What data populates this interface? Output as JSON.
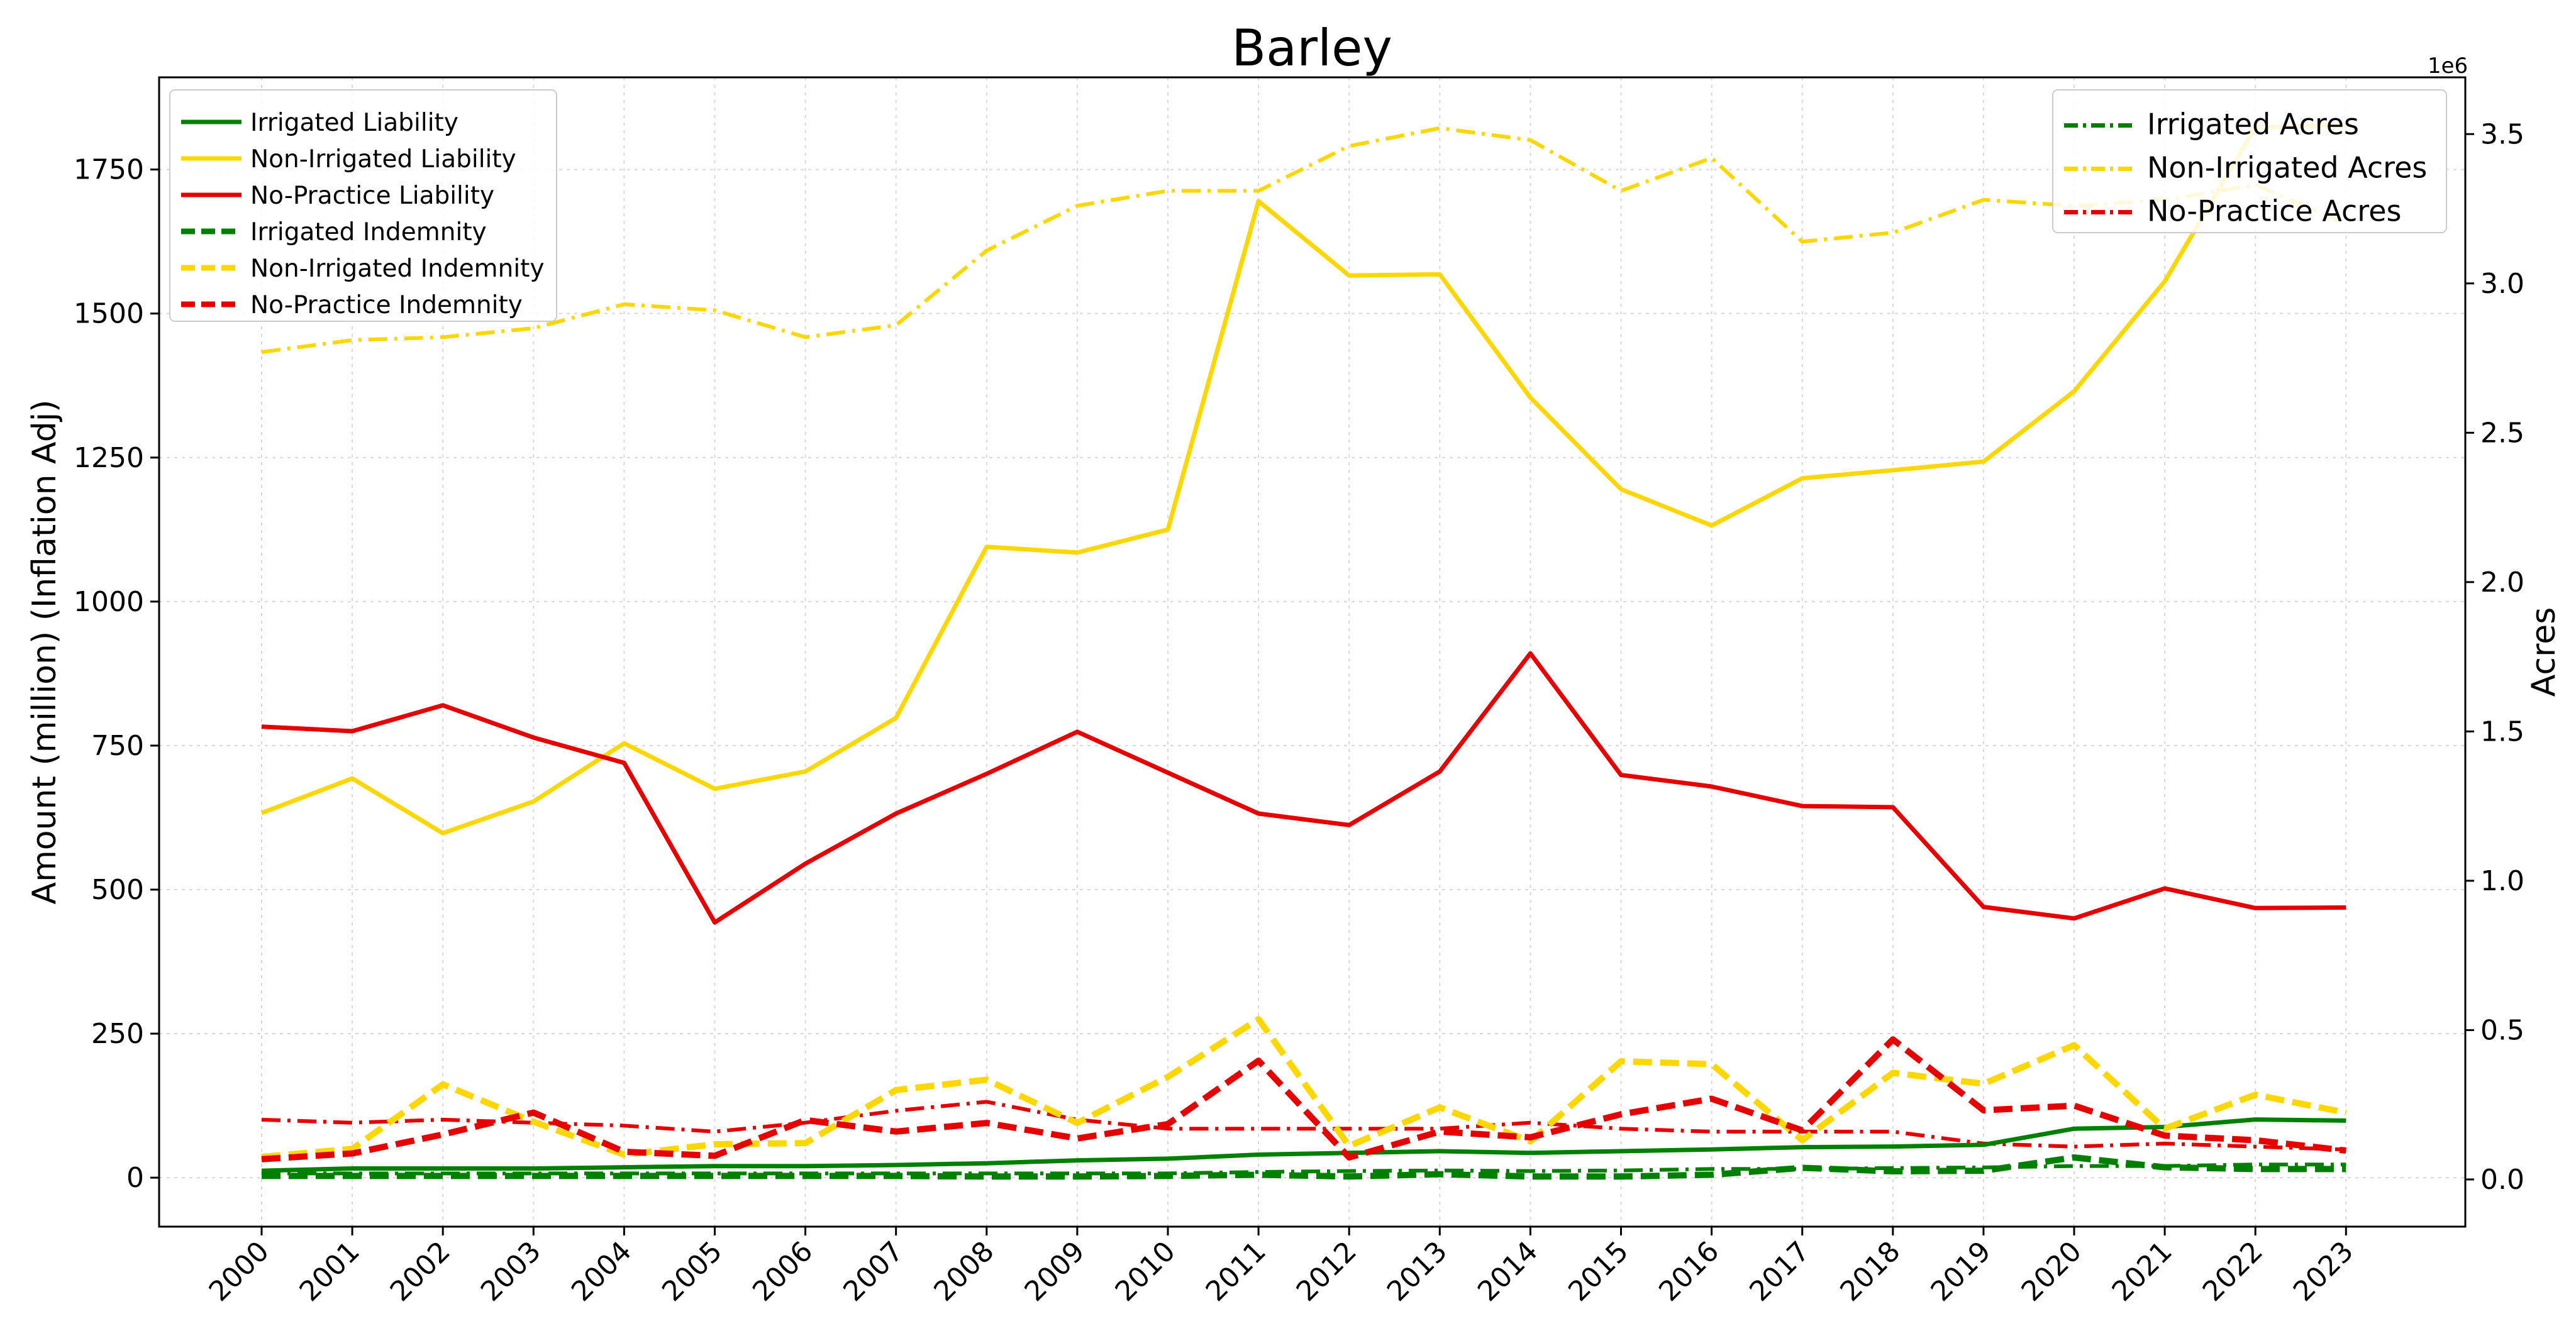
{
  "chart_data": {
    "type": "line",
    "title": "Barley",
    "ylabel": "Amount (million) (Inflation Adj)",
    "ylabel_right": "Acres",
    "right_axis_multiplier": "1e6",
    "grid": true,
    "legend_left_placement": "top-left",
    "legend_right_placement": "top-right",
    "x": [
      "2000",
      "2001",
      "2002",
      "2003",
      "2004",
      "2005",
      "2006",
      "2007",
      "2008",
      "2009",
      "2010",
      "2011",
      "2012",
      "2013",
      "2014",
      "2015",
      "2016",
      "2017",
      "2018",
      "2019",
      "2020",
      "2021",
      "2022",
      "2023"
    ],
    "y_left_range": [
      -85,
      1910
    ],
    "y_left_ticks": [
      "0",
      "250",
      "500",
      "750",
      "1000",
      "1250",
      "1500",
      "1750"
    ],
    "y_left_tick_values": [
      0,
      250,
      500,
      750,
      1000,
      1250,
      1500,
      1750
    ],
    "y_right_range": [
      -0.158,
      3.69
    ],
    "y_right_ticks": [
      "0.0",
      "0.5",
      "1.0",
      "1.5",
      "2.0",
      "2.5",
      "3.0",
      "3.5"
    ],
    "y_right_tick_values": [
      0,
      0.5,
      1.0,
      1.5,
      2.0,
      2.5,
      3.0,
      3.5
    ],
    "series_left": [
      {
        "name": "Irrigated Liability",
        "color": "#008000",
        "style": "solid",
        "values": [
          12,
          16,
          16,
          16,
          18,
          20,
          20,
          22,
          25,
          30,
          33,
          40,
          43,
          46,
          43,
          46,
          49,
          53,
          54,
          57,
          85,
          88,
          101,
          99
        ]
      },
      {
        "name": "Non-Irrigated Liability",
        "color": "#FFD700",
        "style": "solid",
        "values": [
          633,
          693,
          598,
          653,
          754,
          675,
          705,
          798,
          1095,
          1085,
          1125,
          1695,
          1566,
          1568,
          1354,
          1195,
          1132,
          1214,
          1228,
          1243,
          1365,
          1556,
          1823,
          1827
        ]
      },
      {
        "name": "No-Practice Liability",
        "color": "#E60000",
        "style": "solid",
        "values": [
          783,
          775,
          820,
          764,
          720,
          443,
          545,
          632,
          701,
          774,
          703,
          632,
          612,
          705,
          910,
          699,
          679,
          645,
          643,
          470,
          450,
          502,
          468,
          469
        ]
      },
      {
        "name": "Irrigated Indemnity",
        "color": "#008000",
        "style": "dashed",
        "values": [
          3,
          3,
          3,
          3,
          3,
          3,
          3,
          3,
          2,
          2,
          3,
          5,
          2,
          6,
          2,
          2,
          5,
          17,
          11,
          12,
          35,
          18,
          15,
          15
        ]
      },
      {
        "name": "Non-Irrigated Indemnity",
        "color": "#FFD700",
        "style": "dashed",
        "values": [
          36,
          50,
          162,
          97,
          40,
          58,
          60,
          152,
          170,
          95,
          175,
          275,
          55,
          122,
          63,
          202,
          197,
          65,
          182,
          163,
          230,
          85,
          144,
          113
        ]
      },
      {
        "name": "No-Practice Indemnity",
        "color": "#E60000",
        "style": "dashed",
        "values": [
          32,
          42,
          75,
          113,
          45,
          38,
          100,
          80,
          95,
          68,
          93,
          203,
          35,
          80,
          70,
          110,
          137,
          82,
          240,
          117,
          125,
          73,
          65,
          47
        ]
      }
    ],
    "series_right": [
      {
        "name": "Irrigated Acres",
        "color": "#008000",
        "style": "dashdot",
        "values": [
          0.02,
          0.02,
          0.02,
          0.02,
          0.02,
          0.02,
          0.02,
          0.02,
          0.02,
          0.02,
          0.02,
          0.025,
          0.028,
          0.03,
          0.028,
          0.03,
          0.035,
          0.035,
          0.038,
          0.04,
          0.045,
          0.045,
          0.05,
          0.05
        ]
      },
      {
        "name": "Non-Irrigated Acres",
        "color": "#FFD700",
        "style": "dashdot",
        "values": [
          2.77,
          2.81,
          2.82,
          2.85,
          2.93,
          2.91,
          2.82,
          2.86,
          3.11,
          3.26,
          3.31,
          3.31,
          3.46,
          3.52,
          3.48,
          3.31,
          3.42,
          3.14,
          3.17,
          3.28,
          3.26,
          3.28,
          3.33,
          3.2
        ]
      },
      {
        "name": "No-Practice Acres",
        "color": "#E60000",
        "style": "dashdot",
        "values": [
          0.2,
          0.19,
          0.2,
          0.19,
          0.18,
          0.16,
          0.19,
          0.23,
          0.26,
          0.2,
          0.17,
          0.17,
          0.17,
          0.17,
          0.19,
          0.17,
          0.16,
          0.16,
          0.16,
          0.12,
          0.11,
          0.12,
          0.11,
          0.1
        ]
      }
    ]
  }
}
